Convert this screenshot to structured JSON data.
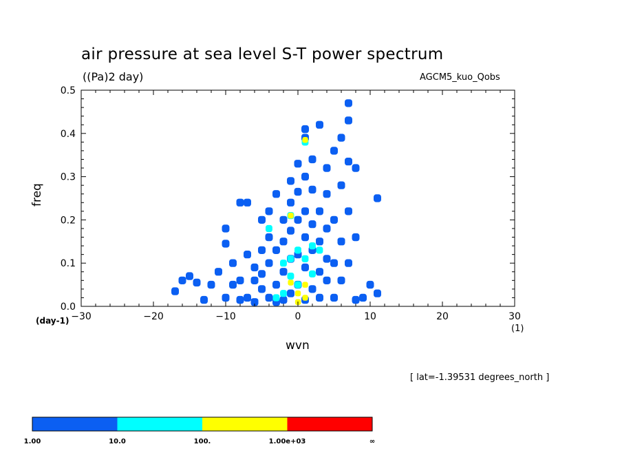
{
  "header": {
    "title": "air pressure at sea level S-T power spectrum",
    "units": "((Pa)2 day)",
    "model": "AGCM5_kuo_Qobs"
  },
  "axes": {
    "x_dim_label": "(day-1)",
    "y_dim_label": "(1)",
    "xlabel": "wvn",
    "ylabel": "freq"
  },
  "footer": {
    "lat_note": "[ lat=-1.39531 degrees_north ]"
  },
  "colors": {
    "level1": "#0b5ff2",
    "level2": "#00ffff",
    "level3": "#ffff00",
    "level4": "#ff0000"
  },
  "chart_data": {
    "type": "heatmap",
    "title": "air pressure at sea level S-T power spectrum",
    "xlabel": "wvn",
    "ylabel": "freq",
    "xlim": [
      -30,
      30
    ],
    "ylim": [
      0,
      0.5
    ],
    "xticks": [
      "−30",
      "−20",
      "−10",
      "0",
      "10",
      "20",
      "30"
    ],
    "yticks": [
      "0.0",
      "0.1",
      "0.2",
      "0.3",
      "0.4",
      "0.5"
    ],
    "colorbar": {
      "labels": [
        "1.00",
        "10.0",
        "100.",
        "1.00e+03",
        "∞"
      ],
      "colors": [
        "#0b5ff2",
        "#00ffff",
        "#ffff00",
        "#ff0000"
      ]
    },
    "cells": [
      {
        "x": -17,
        "y": 0.035,
        "level": 1
      },
      {
        "x": -16,
        "y": 0.06,
        "level": 1
      },
      {
        "x": -15,
        "y": 0.07,
        "level": 1
      },
      {
        "x": -14,
        "y": 0.055,
        "level": 1
      },
      {
        "x": -13,
        "y": 0.015,
        "level": 1
      },
      {
        "x": -12,
        "y": 0.05,
        "level": 1
      },
      {
        "x": -11,
        "y": 0.08,
        "level": 1
      },
      {
        "x": -10,
        "y": 0.02,
        "level": 1
      },
      {
        "x": -10,
        "y": 0.145,
        "level": 1
      },
      {
        "x": -10,
        "y": 0.18,
        "level": 1
      },
      {
        "x": -9,
        "y": 0.1,
        "level": 1
      },
      {
        "x": -9,
        "y": 0.05,
        "level": 1
      },
      {
        "x": -8,
        "y": 0.06,
        "level": 1
      },
      {
        "x": -8,
        "y": 0.015,
        "level": 1
      },
      {
        "x": -7,
        "y": 0.02,
        "level": 1
      },
      {
        "x": -7,
        "y": 0.12,
        "level": 1
      },
      {
        "x": -7,
        "y": 0.24,
        "level": 1
      },
      {
        "x": -6,
        "y": 0.09,
        "level": 1
      },
      {
        "x": -6,
        "y": 0.06,
        "level": 1
      },
      {
        "x": -6,
        "y": 0.01,
        "level": 1
      },
      {
        "x": -5,
        "y": 0.04,
        "level": 1
      },
      {
        "x": -5,
        "y": 0.13,
        "level": 1
      },
      {
        "x": -5,
        "y": 0.2,
        "level": 1
      },
      {
        "x": -5,
        "y": 0.075,
        "level": 1
      },
      {
        "x": -4,
        "y": 0.02,
        "level": 1
      },
      {
        "x": -4,
        "y": 0.1,
        "level": 1
      },
      {
        "x": -4,
        "y": 0.16,
        "level": 1
      },
      {
        "x": -4,
        "y": 0.22,
        "level": 1
      },
      {
        "x": -3,
        "y": 0.05,
        "level": 1
      },
      {
        "x": -3,
        "y": 0.13,
        "level": 1
      },
      {
        "x": -3,
        "y": 0.26,
        "level": 1
      },
      {
        "x": -3,
        "y": 0.01,
        "level": 1
      },
      {
        "x": -2,
        "y": 0.015,
        "level": 1
      },
      {
        "x": -2,
        "y": 0.08,
        "level": 1
      },
      {
        "x": -2,
        "y": 0.15,
        "level": 1
      },
      {
        "x": -2,
        "y": 0.2,
        "level": 1
      },
      {
        "x": -1,
        "y": 0.03,
        "level": 1
      },
      {
        "x": -1,
        "y": 0.11,
        "level": 1
      },
      {
        "x": -1,
        "y": 0.175,
        "level": 1
      },
      {
        "x": -1,
        "y": 0.24,
        "level": 1
      },
      {
        "x": -1,
        "y": 0.29,
        "level": 1
      },
      {
        "x": 0,
        "y": 0.05,
        "level": 1
      },
      {
        "x": 0,
        "y": 0.12,
        "level": 1
      },
      {
        "x": 0,
        "y": 0.2,
        "level": 1
      },
      {
        "x": 0,
        "y": 0.265,
        "level": 1
      },
      {
        "x": 0,
        "y": 0.33,
        "level": 1
      },
      {
        "x": 1,
        "y": 0.015,
        "level": 1
      },
      {
        "x": 1,
        "y": 0.09,
        "level": 1
      },
      {
        "x": 1,
        "y": 0.16,
        "level": 1
      },
      {
        "x": 1,
        "y": 0.22,
        "level": 1
      },
      {
        "x": 1,
        "y": 0.3,
        "level": 1
      },
      {
        "x": 1,
        "y": 0.39,
        "level": 1
      },
      {
        "x": 1,
        "y": 0.41,
        "level": 1
      },
      {
        "x": 2,
        "y": 0.04,
        "level": 1
      },
      {
        "x": 2,
        "y": 0.13,
        "level": 1
      },
      {
        "x": 2,
        "y": 0.19,
        "level": 1
      },
      {
        "x": 2,
        "y": 0.27,
        "level": 1
      },
      {
        "x": 2,
        "y": 0.34,
        "level": 1
      },
      {
        "x": 3,
        "y": 0.02,
        "level": 1
      },
      {
        "x": 3,
        "y": 0.08,
        "level": 1
      },
      {
        "x": 3,
        "y": 0.15,
        "level": 1
      },
      {
        "x": 3,
        "y": 0.22,
        "level": 1
      },
      {
        "x": 3,
        "y": 0.42,
        "level": 1
      },
      {
        "x": 4,
        "y": 0.06,
        "level": 1
      },
      {
        "x": 4,
        "y": 0.11,
        "level": 1
      },
      {
        "x": 4,
        "y": 0.18,
        "level": 1
      },
      {
        "x": 4,
        "y": 0.26,
        "level": 1
      },
      {
        "x": 4,
        "y": 0.32,
        "level": 1
      },
      {
        "x": 5,
        "y": 0.02,
        "level": 1
      },
      {
        "x": 5,
        "y": 0.1,
        "level": 1
      },
      {
        "x": 5,
        "y": 0.2,
        "level": 1
      },
      {
        "x": 5,
        "y": 0.36,
        "level": 1
      },
      {
        "x": 6,
        "y": 0.06,
        "level": 1
      },
      {
        "x": 6,
        "y": 0.15,
        "level": 1
      },
      {
        "x": 6,
        "y": 0.28,
        "level": 1
      },
      {
        "x": 6,
        "y": 0.39,
        "level": 1
      },
      {
        "x": 7,
        "y": 0.1,
        "level": 1
      },
      {
        "x": 7,
        "y": 0.22,
        "level": 1
      },
      {
        "x": 7,
        "y": 0.335,
        "level": 1
      },
      {
        "x": 7,
        "y": 0.43,
        "level": 1
      },
      {
        "x": 7,
        "y": 0.47,
        "level": 1
      },
      {
        "x": 8,
        "y": 0.015,
        "level": 1
      },
      {
        "x": 8,
        "y": 0.16,
        "level": 1
      },
      {
        "x": 8,
        "y": 0.32,
        "level": 1
      },
      {
        "x": 9,
        "y": 0.02,
        "level": 1
      },
      {
        "x": 10,
        "y": 0.05,
        "level": 1
      },
      {
        "x": 11,
        "y": 0.03,
        "level": 1
      },
      {
        "x": 11,
        "y": 0.25,
        "level": 1
      },
      {
        "x": -8,
        "y": 0.24,
        "level": 1
      },
      {
        "x": -4,
        "y": 0.18,
        "level": 2
      },
      {
        "x": -2,
        "y": 0.03,
        "level": 2
      },
      {
        "x": -2,
        "y": 0.1,
        "level": 2
      },
      {
        "x": -1,
        "y": 0.07,
        "level": 2
      },
      {
        "x": -1,
        "y": 0.11,
        "level": 2
      },
      {
        "x": 0,
        "y": 0.05,
        "level": 2
      },
      {
        "x": 0,
        "y": 0.13,
        "level": 2
      },
      {
        "x": -1,
        "y": 0.21,
        "level": 2
      },
      {
        "x": 1,
        "y": 0.38,
        "level": 2
      },
      {
        "x": 1,
        "y": 0.11,
        "level": 2
      },
      {
        "x": 2,
        "y": 0.075,
        "level": 2
      },
      {
        "x": 2,
        "y": 0.14,
        "level": 2
      },
      {
        "x": 3,
        "y": 0.13,
        "level": 2
      },
      {
        "x": -3,
        "y": 0.02,
        "level": 2
      },
      {
        "x": -1,
        "y": 0.055,
        "level": 3
      },
      {
        "x": 0,
        "y": 0.01,
        "level": 3
      },
      {
        "x": 0,
        "y": 0.03,
        "level": 3
      },
      {
        "x": 1,
        "y": 0.05,
        "level": 3
      },
      {
        "x": 1,
        "y": 0.02,
        "level": 3
      },
      {
        "x": -1,
        "y": 0.21,
        "level": 3
      },
      {
        "x": 1,
        "y": 0.385,
        "level": 3
      }
    ]
  }
}
